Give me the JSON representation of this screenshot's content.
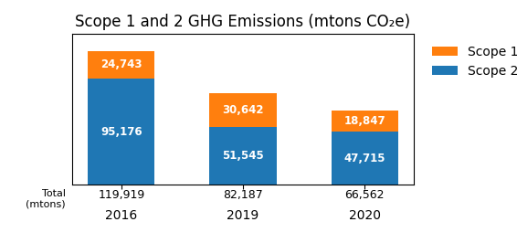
{
  "chart_data": {
    "type": "bar",
    "title": "Scope 1 and 2 GHG Emissions (mtons CO₂e)",
    "categories": [
      "2016",
      "2019",
      "2020"
    ],
    "stacked": true,
    "series": [
      {
        "name": "Scope 2",
        "values": [
          95176,
          51545,
          47715
        ],
        "value_labels": [
          "95,176",
          "51,545",
          "47,715"
        ]
      },
      {
        "name": "Scope 1",
        "values": [
          24743,
          30642,
          18847
        ],
        "value_labels": [
          "24,743",
          "30,642",
          "18,847"
        ]
      }
    ],
    "data_labels": true,
    "totals": {
      "label": "Total\n(mtons)",
      "labels": [
        "119,919",
        "82,187",
        "66,562"
      ]
    },
    "ylim": [
      0,
      135000
    ],
    "tick_labels": "x",
    "legend": "upper left"
  }
}
